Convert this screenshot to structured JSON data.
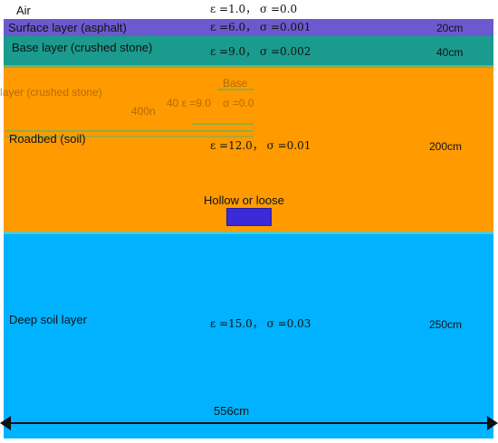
{
  "layers": {
    "air": {
      "label": "Air",
      "params": "ε =1.0， σ =0.0",
      "thickness": "",
      "color": "#ffffff"
    },
    "surface": {
      "label": "Surface layer (asphalt)",
      "params": "ε =6.0， σ =0.001",
      "thickness": "20cm",
      "color": "#6a5acd"
    },
    "base": {
      "label": "Base layer (crushed stone)",
      "params": "ε =9.0， σ =0.002",
      "thickness": "40cm",
      "color": "#1a9b8e"
    },
    "roadbed": {
      "label": "Roadbed (soil)",
      "params": "ε =12.0， σ =0.01",
      "thickness": "200cm",
      "color": "#ff9a00"
    },
    "deep": {
      "label": "Deep soil layer",
      "params": "ε =15.0， σ =0.03",
      "thickness": "250cm",
      "color": "#00b2ff"
    }
  },
  "anomaly": {
    "label": "Hollow or loose",
    "color": "#3a2ad8"
  },
  "dimension": {
    "width_label": "556cm"
  },
  "artifacts": {
    "ghost1": "layer (crushed stone)",
    "ghost2": "Base",
    "ghost3": "400n",
    "ghost4": "40 ε =9.0",
    "ghost5": "σ =0.0"
  }
}
